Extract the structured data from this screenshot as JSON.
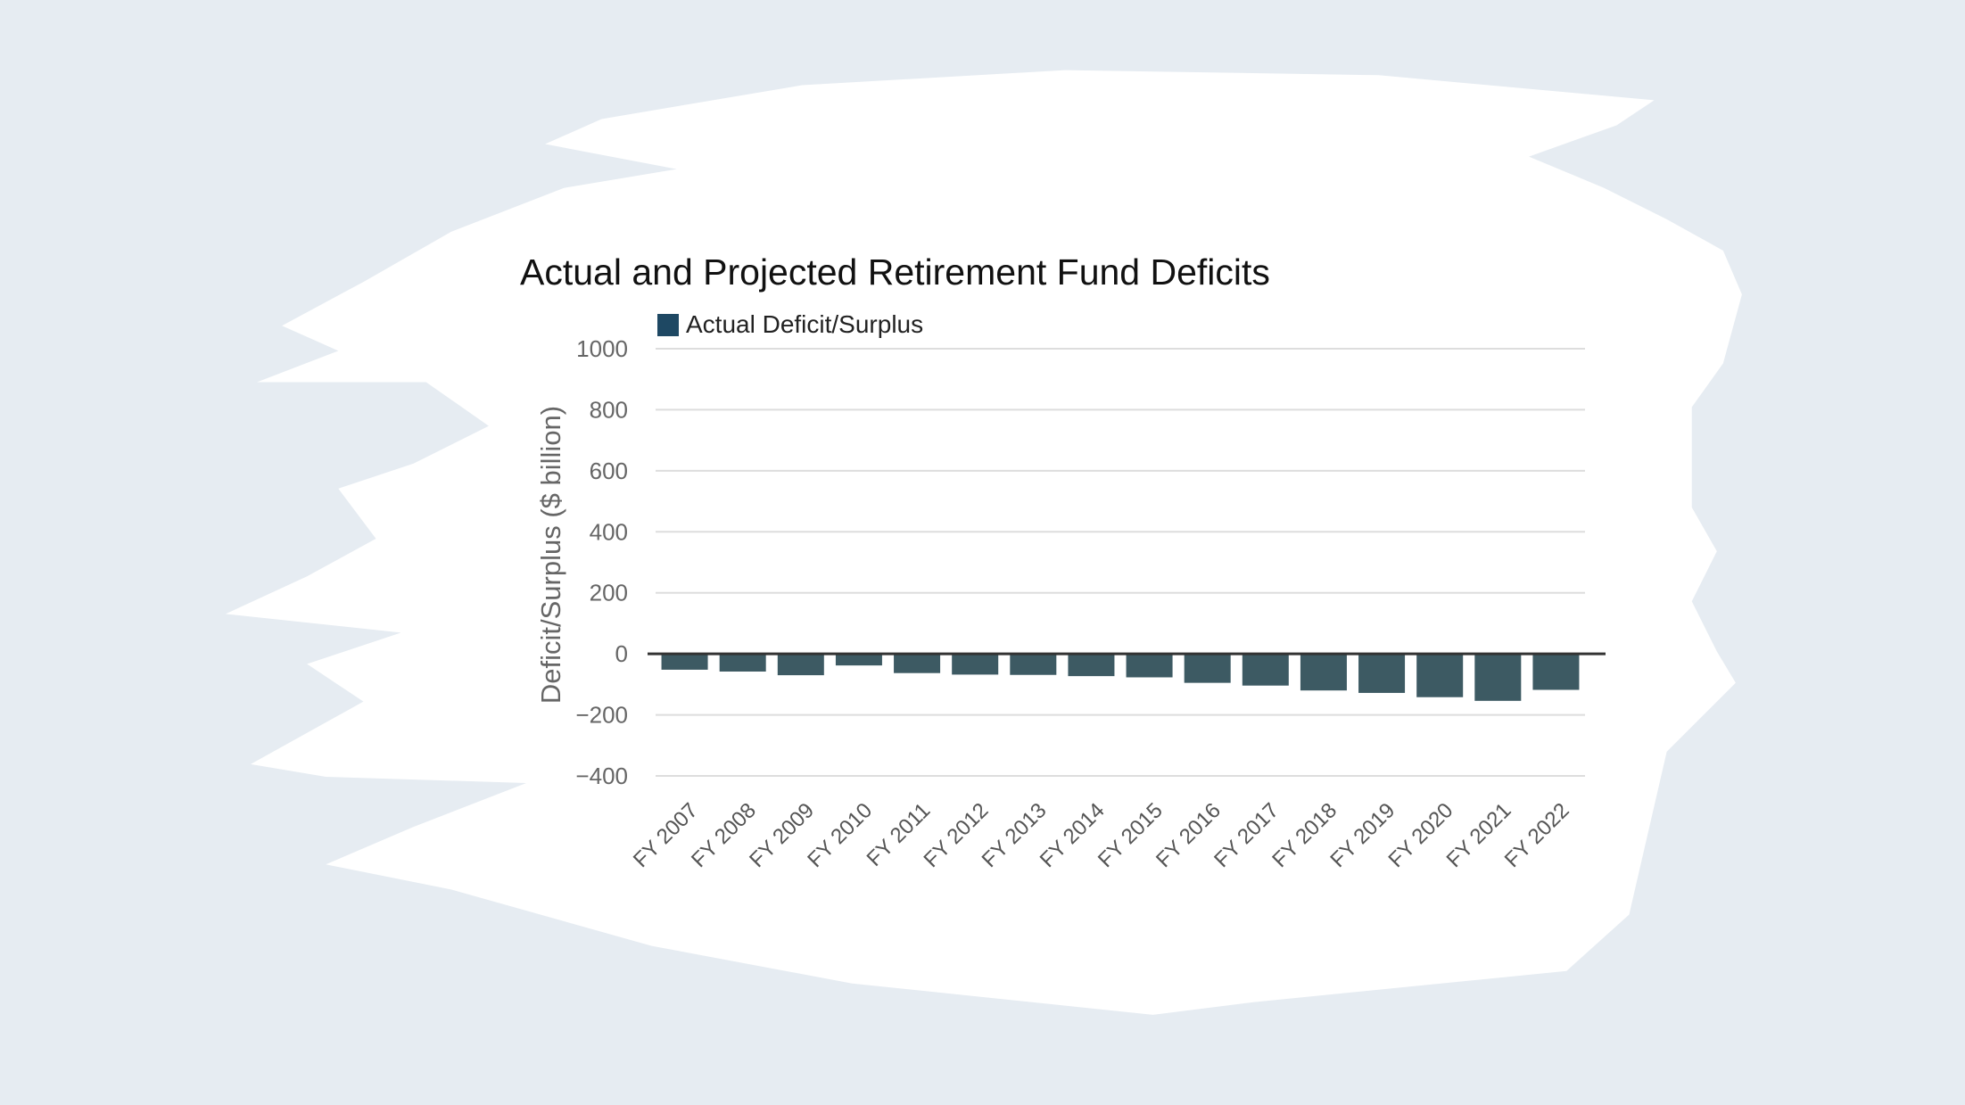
{
  "colors": {
    "background": "#e6ecf2",
    "bar": "#3d5a63",
    "legend_swatch": "#1e4863",
    "zero_line": "#333333",
    "grid": "#dddddd"
  },
  "chart_data": {
    "type": "bar",
    "title": "Actual and Projected Retirement Fund Deficits",
    "ylabel": "Deficit/Surplus ($ billion)",
    "xlabel": "",
    "ylim": [
      -400,
      1000
    ],
    "yticks": [
      1000,
      800,
      600,
      400,
      200,
      0,
      -200,
      -400
    ],
    "ytick_labels": [
      "1000",
      "800",
      "600",
      "400",
      "200",
      "0",
      "−200",
      "−400"
    ],
    "grid": true,
    "legend": "top-left",
    "categories": [
      "FY 2007",
      "FY 2008",
      "FY 2009",
      "FY 2010",
      "FY 2011",
      "FY 2012",
      "FY 2013",
      "FY 2014",
      "FY 2015",
      "FY 2016",
      "FY 2017",
      "FY 2018",
      "FY 2019",
      "FY 2020",
      "FY 2021",
      "FY 2022"
    ],
    "series": [
      {
        "name": "Actual Deficit/Surplus",
        "values": [
          -52,
          -58,
          -70,
          -38,
          -63,
          -68,
          -69,
          -73,
          -77,
          -95,
          -104,
          -120,
          -128,
          -142,
          -154,
          -118
        ]
      }
    ]
  }
}
